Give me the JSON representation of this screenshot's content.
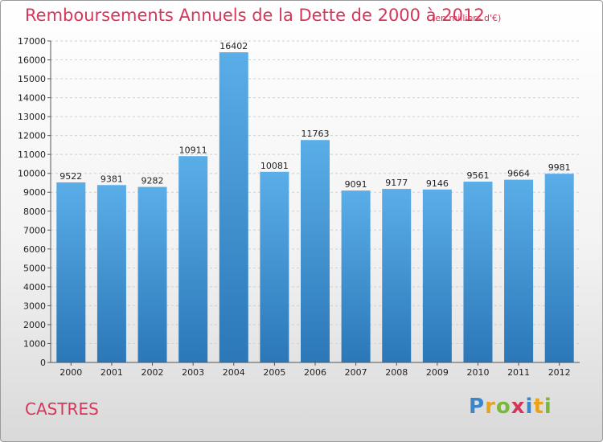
{
  "header": {
    "title": "Remboursements Annuels de la Dette de 2000 à 2012",
    "unit_note": "(en milliers d'€)"
  },
  "footer": {
    "city": "CASTRES",
    "logo_text": "Proxiti",
    "logo_letters": [
      {
        "char": "P",
        "color": "#3a86c8"
      },
      {
        "char": "r",
        "color": "#e8a21c"
      },
      {
        "char": "o",
        "color": "#7bb83a"
      },
      {
        "char": "x",
        "color": "#d5365a"
      },
      {
        "char": "i",
        "color": "#3a86c8"
      },
      {
        "char": "t",
        "color": "#e8a21c"
      },
      {
        "char": "i",
        "color": "#7bb83a"
      }
    ]
  },
  "colors": {
    "accent": "#d5365a",
    "bar_top": "#5aaee8",
    "bar_bottom": "#2b77b8"
  },
  "chart_data": {
    "type": "bar",
    "title": "Remboursements Annuels de la Dette de 2000 à 2012",
    "subtitle": "(en milliers d'€)",
    "categories": [
      "2000",
      "2001",
      "2002",
      "2003",
      "2004",
      "2005",
      "2006",
      "2007",
      "2008",
      "2009",
      "2010",
      "2011",
      "2012"
    ],
    "values": [
      9522,
      9381,
      9282,
      10911,
      16402,
      10081,
      11763,
      9091,
      9177,
      9146,
      9561,
      9664,
      9981
    ],
    "ylim": [
      0,
      17000
    ],
    "yticks": [
      0,
      1000,
      2000,
      3000,
      4000,
      5000,
      6000,
      7000,
      8000,
      9000,
      10000,
      11000,
      12000,
      13000,
      14000,
      15000,
      16000,
      17000
    ],
    "grid": true,
    "xlabel": "",
    "ylabel": ""
  }
}
